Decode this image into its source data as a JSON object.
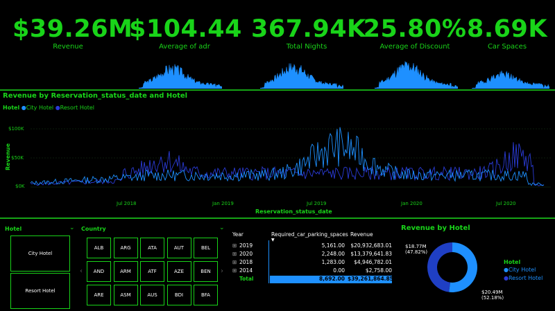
{
  "kpis": [
    {
      "value": "$39.26M",
      "label": "Revenue"
    },
    {
      "value": "$104.44",
      "label": "Average of adr"
    },
    {
      "value": "367.94K",
      "label": "Total Nights"
    },
    {
      "value": "25.80%",
      "label": "Average of Discount"
    },
    {
      "value": "8.69K",
      "label": "Car Spaces"
    }
  ],
  "line_chart": {
    "title": "Revenue by Reservation_status_date and Hotel",
    "legend_title": "Hotel",
    "legend": [
      {
        "name": "City Hotel",
        "color": "#1e90ff"
      },
      {
        "name": "Resort Hotel",
        "color": "#2a3bd6"
      }
    ],
    "ylabel": "Revenue",
    "xlabel": "Reservation_status_date",
    "y_ticks": [
      "$100K",
      "$50K",
      "$0K"
    ],
    "x_ticks": [
      "Jul 2018",
      "Jan 2019",
      "Jul 2019",
      "Jan 2020",
      "Jul 2020"
    ]
  },
  "hotel_slicer": {
    "title": "Hotel",
    "items": [
      "City Hotel",
      "Resort Hotel"
    ]
  },
  "country_slicer": {
    "title": "Country",
    "items": [
      "ALB",
      "ARG",
      "ATA",
      "AUT",
      "BEL",
      "AND",
      "ARM",
      "ATF",
      "AZE",
      "BEN",
      "ARE",
      "ASM",
      "AUS",
      "BDI",
      "BFA"
    ]
  },
  "table": {
    "headers": [
      "Year",
      "Required_car_parking_spaces",
      "Revenue"
    ],
    "rows": [
      {
        "year": "2019",
        "parking": "5,161.00",
        "revenue": "$20,932,683.01"
      },
      {
        "year": "2020",
        "parking": "2,248.00",
        "revenue": "$13,379,641.83"
      },
      {
        "year": "2018",
        "parking": "1,283.00",
        "revenue": "$4,946,782.01"
      },
      {
        "year": "2014",
        "parking": "0.00",
        "revenue": "$2,758.00"
      }
    ],
    "total": {
      "label": "Total",
      "parking": "8,692.00",
      "revenue": "$39,261,864.85"
    }
  },
  "donut": {
    "title": "Revenue by Hotel",
    "legend_title": "Hotel",
    "slices": [
      {
        "name": "City Hotel",
        "value_label": "$20.49M",
        "pct_label": "(52.18%)",
        "pct": 52.18,
        "color": "#1e90ff"
      },
      {
        "name": "Resort Hotel",
        "value_label": "$18.77M",
        "pct_label": "(47.82%)",
        "pct": 47.82,
        "color": "#1f3fc4"
      }
    ]
  },
  "colors": {
    "accent": "#19d419",
    "city": "#1e90ff",
    "resort": "#2a3bd6",
    "background": "#000000"
  }
}
